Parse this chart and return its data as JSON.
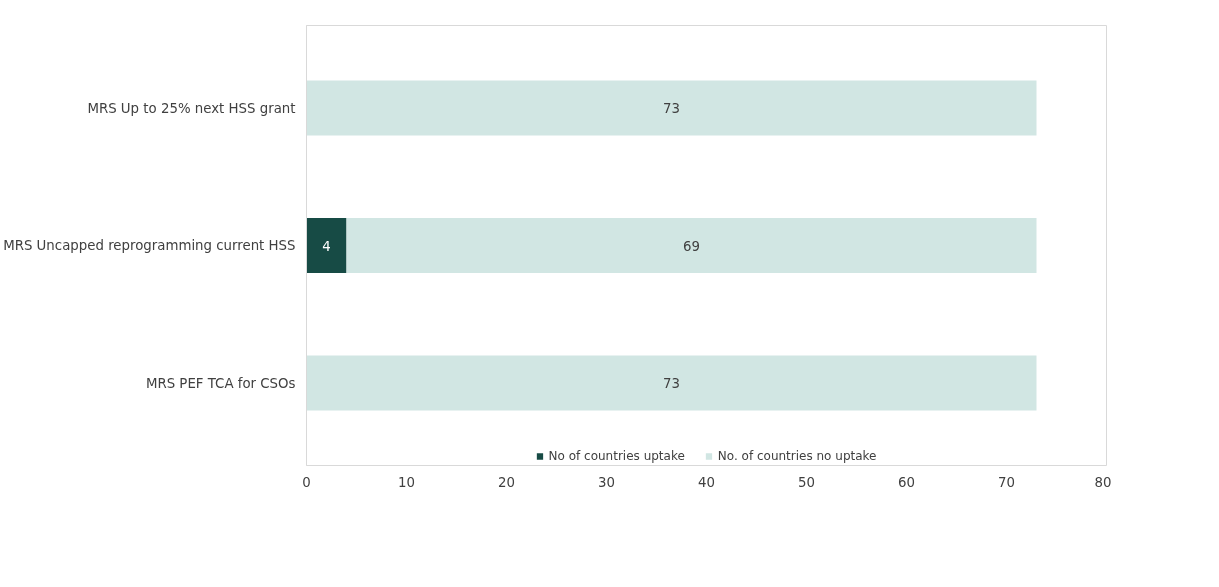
{
  "chart_data": {
    "type": "bar",
    "orientation": "horizontal",
    "stacked": true,
    "categories": [
      "MRS Up to 25% next HSS grant",
      "MRS Uncapped reprogramming current HSS",
      "MRS PEF TCA for CSOs"
    ],
    "series": [
      {
        "name": "No of countries uptake",
        "color": "#174b45",
        "values": [
          0,
          4,
          0
        ],
        "value_labels": [
          null,
          "4",
          null
        ]
      },
      {
        "name": "No. of countries no uptake",
        "color": "#d1e6e3",
        "values": [
          73,
          69,
          73
        ],
        "value_labels": [
          "73",
          "69",
          "73"
        ]
      }
    ],
    "xlim": [
      0,
      80
    ],
    "xticks": [
      0,
      10,
      20,
      30,
      40,
      50,
      60,
      70,
      80
    ],
    "grid": false,
    "legend": "bottom"
  }
}
